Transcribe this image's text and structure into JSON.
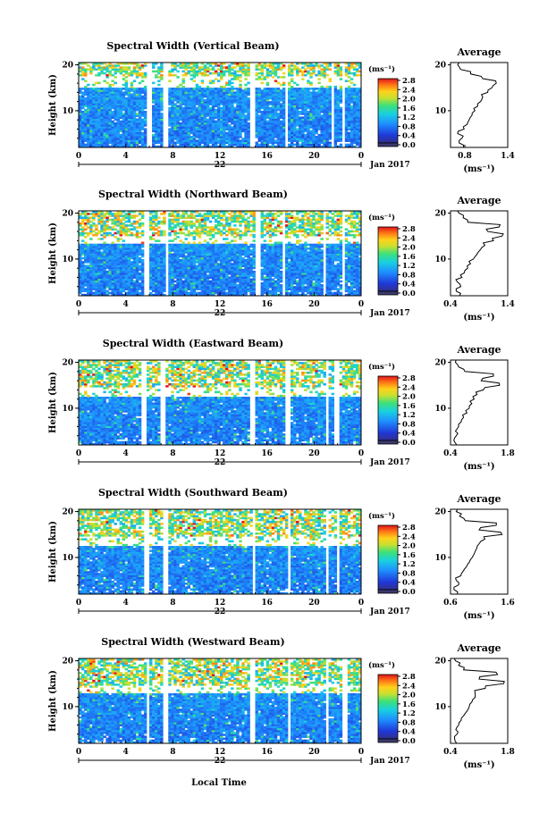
{
  "figure": {
    "xlabel": "Local Time",
    "ylabel": "Height (km)",
    "day_label": "22",
    "month_label": "Jan 2017",
    "colorbar_unit": "(ms⁻¹)",
    "average_title": "Average",
    "average_unit": "(ms⁻¹)"
  },
  "chart_data": [
    {
      "type": "heatmap",
      "title": "Spectral Width (Vertical Beam)",
      "ylabel": "Height (km)",
      "x_range": [
        0,
        24
      ],
      "x_ticks": [
        "0",
        "4",
        "8",
        "12",
        "16",
        "20",
        "0"
      ],
      "y_range": [
        2,
        20.5
      ],
      "y_ticks": [
        "10",
        "20"
      ],
      "colorbar_range": [
        0,
        2.8
      ],
      "colorbar_ticks": [
        "2.8",
        "2.4",
        "2.0",
        "1.6",
        "1.2",
        "0.8",
        "0.4",
        "0.0"
      ],
      "data_gaps_hours": [
        [
          5.8,
          6.2
        ],
        [
          7.2,
          7.5
        ],
        [
          14.5,
          14.9
        ],
        [
          17.5,
          17.8
        ],
        [
          21.4,
          21.6
        ],
        [
          22.4,
          22.7
        ]
      ],
      "no_data_band_km": [
        15.2,
        17.5
      ],
      "profile": {
        "title": "Average",
        "xlim": [
          0.6,
          1.4
        ],
        "x_ticks": [
          "0.8",
          "1.4"
        ],
        "y_ticks": [
          "10",
          "20"
        ],
        "heights": [
          2,
          3,
          4,
          5,
          6,
          7,
          8,
          9,
          10,
          11,
          12,
          13,
          14,
          15,
          16,
          17,
          18,
          19,
          20
        ],
        "values": [
          0.78,
          0.72,
          0.76,
          0.7,
          0.79,
          0.83,
          0.86,
          0.9,
          0.94,
          0.98,
          1.02,
          1.05,
          1.12,
          1.18,
          1.24,
          1.05,
          0.88,
          0.74,
          0.7
        ]
      }
    },
    {
      "type": "heatmap",
      "title": "Spectral Width (Northward Beam)",
      "ylabel": "Height (km)",
      "x_range": [
        0,
        24
      ],
      "x_ticks": [
        "0",
        "4",
        "8",
        "12",
        "16",
        "20",
        "0"
      ],
      "y_range": [
        2,
        20.5
      ],
      "y_ticks": [
        "10",
        "20"
      ],
      "colorbar_range": [
        0,
        2.8
      ],
      "colorbar_ticks": [
        "2.8",
        "2.4",
        "2.0",
        "1.6",
        "1.2",
        "0.8",
        "0.4",
        "0.0"
      ],
      "data_gaps_hours": [
        [
          5.6,
          6.0
        ],
        [
          7.3,
          7.6
        ],
        [
          15.0,
          15.4
        ],
        [
          17.2,
          17.5
        ],
        [
          20.8,
          21.1
        ],
        [
          22.3,
          22.6
        ]
      ],
      "no_data_band_km": [
        13.5,
        15.0
      ],
      "profile": {
        "title": "Average",
        "xlim": [
          0.4,
          1.4
        ],
        "x_ticks": [
          "0.4",
          "1.4"
        ],
        "y_ticks": [
          "10",
          "20"
        ],
        "heights": [
          2,
          3,
          4,
          5,
          6,
          7,
          8,
          9,
          10,
          11,
          12,
          13,
          14,
          15,
          16,
          17,
          18,
          19,
          20
        ],
        "values": [
          0.56,
          0.5,
          0.58,
          0.52,
          0.6,
          0.64,
          0.7,
          0.75,
          0.8,
          0.86,
          0.92,
          1.0,
          1.15,
          1.3,
          1.05,
          1.25,
          0.7,
          0.62,
          0.55
        ]
      }
    },
    {
      "type": "heatmap",
      "title": "Spectral Width (Eastward Beam)",
      "ylabel": "Height (km)",
      "x_range": [
        0,
        24
      ],
      "x_ticks": [
        "0",
        "4",
        "8",
        "12",
        "16",
        "20",
        "0"
      ],
      "y_range": [
        2,
        20.5
      ],
      "y_ticks": [
        "10",
        "20"
      ],
      "colorbar_range": [
        0,
        2.8
      ],
      "colorbar_ticks": [
        "2.8",
        "2.4",
        "2.0",
        "1.6",
        "1.2",
        "0.8",
        "0.4",
        "0.0"
      ],
      "data_gaps_hours": [
        [
          5.4,
          5.7
        ],
        [
          7.0,
          7.3
        ],
        [
          14.5,
          14.9
        ],
        [
          17.6,
          17.9
        ],
        [
          21.0,
          21.2
        ],
        [
          21.8,
          22.1
        ]
      ],
      "no_data_band_km": [
        12.5,
        14.5
      ],
      "profile": {
        "title": "Average",
        "xlim": [
          0.4,
          1.8
        ],
        "x_ticks": [
          "0.4",
          "1.8"
        ],
        "y_ticks": [
          "10",
          "20"
        ],
        "heights": [
          2,
          3,
          4,
          5,
          6,
          7,
          8,
          9,
          10,
          11,
          12,
          13,
          14,
          15,
          16,
          17,
          18,
          19,
          20
        ],
        "values": [
          0.55,
          0.48,
          0.54,
          0.52,
          0.6,
          0.66,
          0.72,
          0.8,
          0.86,
          0.92,
          0.98,
          1.05,
          1.2,
          1.6,
          1.15,
          1.45,
          0.75,
          0.6,
          0.52
        ]
      }
    },
    {
      "type": "heatmap",
      "title": "Spectral Width (Southward Beam)",
      "ylabel": "Height (km)",
      "x_range": [
        0,
        24
      ],
      "x_ticks": [
        "0",
        "4",
        "8",
        "12",
        "16",
        "20",
        "0"
      ],
      "y_range": [
        2,
        20.5
      ],
      "y_ticks": [
        "10",
        "20"
      ],
      "colorbar_range": [
        0,
        2.8
      ],
      "colorbar_ticks": [
        "2.8",
        "2.4",
        "2.0",
        "1.6",
        "1.2",
        "0.8",
        "0.4",
        "0.0"
      ],
      "data_gaps_hours": [
        [
          5.6,
          5.9
        ],
        [
          7.2,
          7.5
        ],
        [
          14.7,
          15.0
        ],
        [
          17.8,
          18.1
        ],
        [
          21.1,
          21.3
        ],
        [
          21.9,
          22.2
        ]
      ],
      "no_data_band_km": [
        12.5,
        14.5
      ],
      "profile": {
        "title": "Average",
        "xlim": [
          0.6,
          1.6
        ],
        "x_ticks": [
          "0.6",
          "1.6"
        ],
        "y_ticks": [
          "10",
          "20"
        ],
        "heights": [
          2,
          3,
          4,
          5,
          6,
          7,
          8,
          9,
          10,
          11,
          12,
          13,
          14,
          15,
          16,
          17,
          18,
          19,
          20
        ],
        "values": [
          0.72,
          0.66,
          0.74,
          0.7,
          0.78,
          0.82,
          0.88,
          0.93,
          0.98,
          1.02,
          1.06,
          1.1,
          1.2,
          1.5,
          1.1,
          1.4,
          0.86,
          0.76,
          0.7
        ]
      }
    },
    {
      "type": "heatmap",
      "title": "Spectral Width (Westward Beam)",
      "ylabel": "Height (km)",
      "x_range": [
        0,
        24
      ],
      "x_ticks": [
        "0",
        "4",
        "8",
        "12",
        "16",
        "20",
        "0"
      ],
      "y_range": [
        2,
        20.5
      ],
      "y_ticks": [
        "10",
        "20"
      ],
      "colorbar_range": [
        0,
        2.8
      ],
      "colorbar_ticks": [
        "2.8",
        "2.4",
        "2.0",
        "1.6",
        "1.2",
        "0.8",
        "0.4",
        "0.0"
      ],
      "data_gaps_hours": [
        [
          5.7,
          6.0
        ],
        [
          7.2,
          7.5
        ],
        [
          14.6,
          14.9
        ],
        [
          17.8,
          18.1
        ],
        [
          21.0,
          21.2
        ],
        [
          22.5,
          22.8
        ]
      ],
      "no_data_band_km": [
        12.8,
        14.6
      ],
      "profile": {
        "title": "Average",
        "xlim": [
          0.4,
          1.8
        ],
        "x_ticks": [
          "0.4",
          "1.8"
        ],
        "y_ticks": [
          "10",
          "20"
        ],
        "heights": [
          2,
          3,
          4,
          5,
          6,
          7,
          8,
          9,
          10,
          11,
          12,
          13,
          14,
          15,
          16,
          17,
          18,
          19,
          20
        ],
        "values": [
          0.55,
          0.5,
          0.56,
          0.53,
          0.6,
          0.66,
          0.72,
          0.8,
          0.86,
          0.92,
          1.0,
          1.0,
          1.25,
          1.7,
          1.1,
          1.55,
          0.72,
          0.6,
          0.52
        ]
      }
    }
  ]
}
